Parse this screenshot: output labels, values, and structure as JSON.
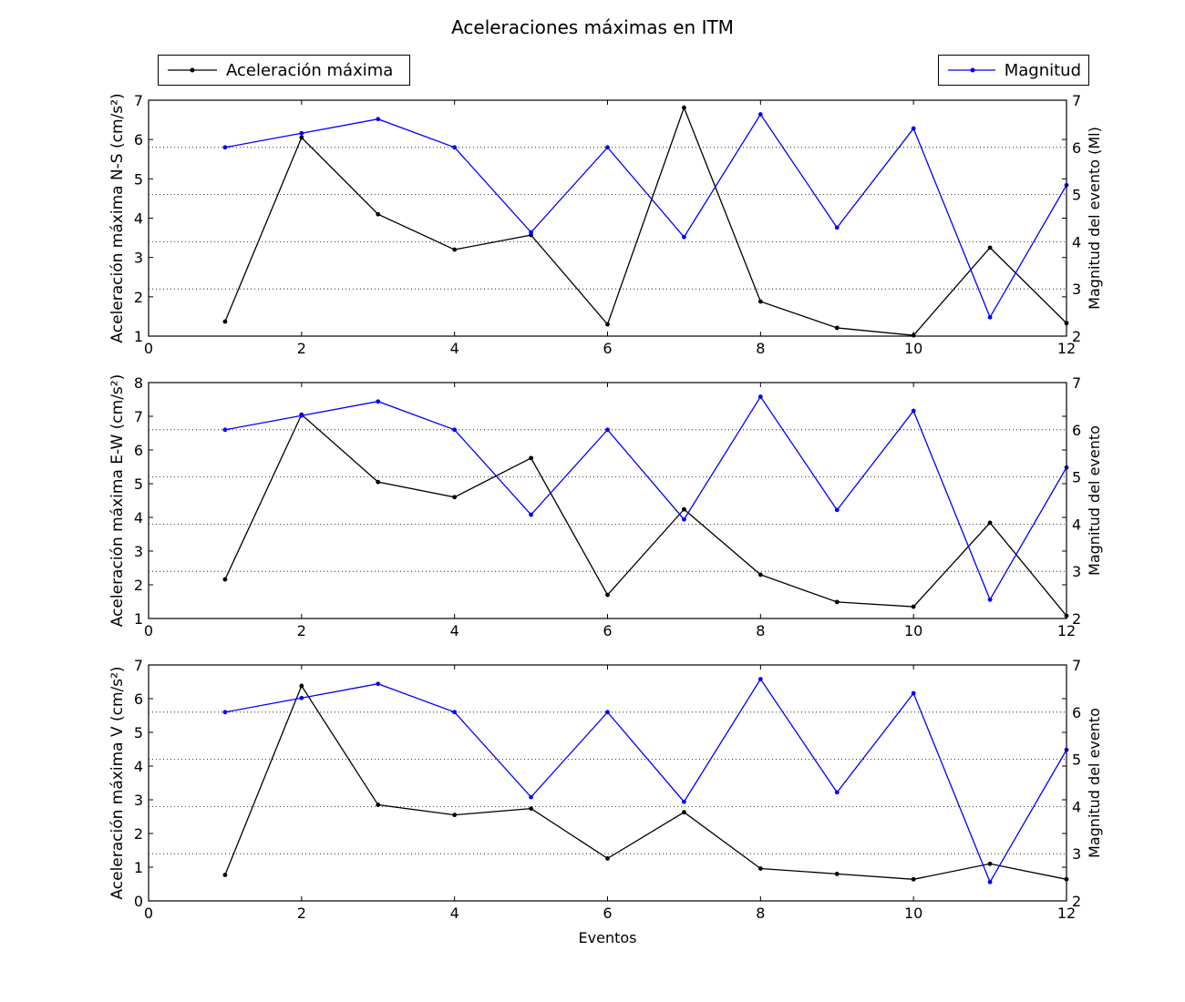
{
  "chart_data": {
    "type": "line",
    "title": "Aceleraciones máximas en ITM",
    "legend": [
      {
        "label": "Aceleración máxima",
        "color": "#000000",
        "placement": "top-left"
      },
      {
        "label": "Magnitud",
        "color": "#0000ff",
        "placement": "top-right"
      }
    ],
    "x": [
      1,
      2,
      3,
      4,
      5,
      6,
      7,
      8,
      9,
      10,
      11,
      12
    ],
    "xlim": [
      0,
      12
    ],
    "xticks": [
      0,
      2,
      4,
      6,
      8,
      10,
      12
    ],
    "xlabel": "Eventos",
    "panels": [
      {
        "ylabel": "Aceleración máxima N-S (cm/s²)",
        "ylim": [
          1,
          7
        ],
        "y2label": "Magnitud del evento (Ml)",
        "y2lim": [
          2,
          7
        ],
        "series": [
          {
            "name": "Aceleración máxima",
            "axis": "left",
            "color": "#000000",
            "values": [
              1.37,
              6.05,
              4.1,
              3.2,
              3.57,
              1.3,
              6.81,
              1.88,
              1.21,
              1.02,
              3.25,
              1.33
            ]
          },
          {
            "name": "Magnitud",
            "axis": "right",
            "color": "#0000ff",
            "values": [
              6.0,
              6.3,
              6.6,
              6.0,
              4.2,
              6.0,
              4.1,
              6.7,
              4.3,
              6.4,
              2.4,
              5.2
            ]
          }
        ]
      },
      {
        "ylabel": "Aceleración máxima E-W (cm/s²)",
        "ylim": [
          1,
          8
        ],
        "y2label": "Magnitud del evento",
        "y2lim": [
          2,
          7
        ],
        "series": [
          {
            "name": "Aceleración máxima",
            "axis": "left",
            "color": "#000000",
            "values": [
              2.16,
              7.05,
              5.05,
              4.6,
              5.76,
              1.7,
              4.24,
              2.3,
              1.49,
              1.35,
              3.84,
              1.08
            ]
          },
          {
            "name": "Magnitud",
            "axis": "right",
            "color": "#0000ff",
            "values": [
              6.0,
              6.3,
              6.6,
              6.0,
              4.2,
              6.0,
              4.1,
              6.7,
              4.3,
              6.4,
              2.4,
              5.2
            ]
          }
        ]
      },
      {
        "ylabel": "Aceleración máxima V (cm/s²)",
        "ylim": [
          0,
          7
        ],
        "y2label": "Magnitud del evento",
        "y2lim": [
          2,
          7
        ],
        "series": [
          {
            "name": "Aceleración máxima",
            "axis": "left",
            "color": "#000000",
            "values": [
              0.77,
              6.38,
              2.85,
              2.55,
              2.74,
              1.26,
              2.63,
              0.96,
              0.8,
              0.64,
              1.1,
              0.64
            ]
          },
          {
            "name": "Magnitud",
            "axis": "right",
            "color": "#0000ff",
            "values": [
              6.0,
              6.3,
              6.6,
              6.0,
              4.2,
              6.0,
              4.1,
              6.7,
              4.3,
              6.4,
              2.4,
              5.2
            ]
          }
        ]
      }
    ],
    "grid": "dotted horizontal at right-axis ticks"
  }
}
